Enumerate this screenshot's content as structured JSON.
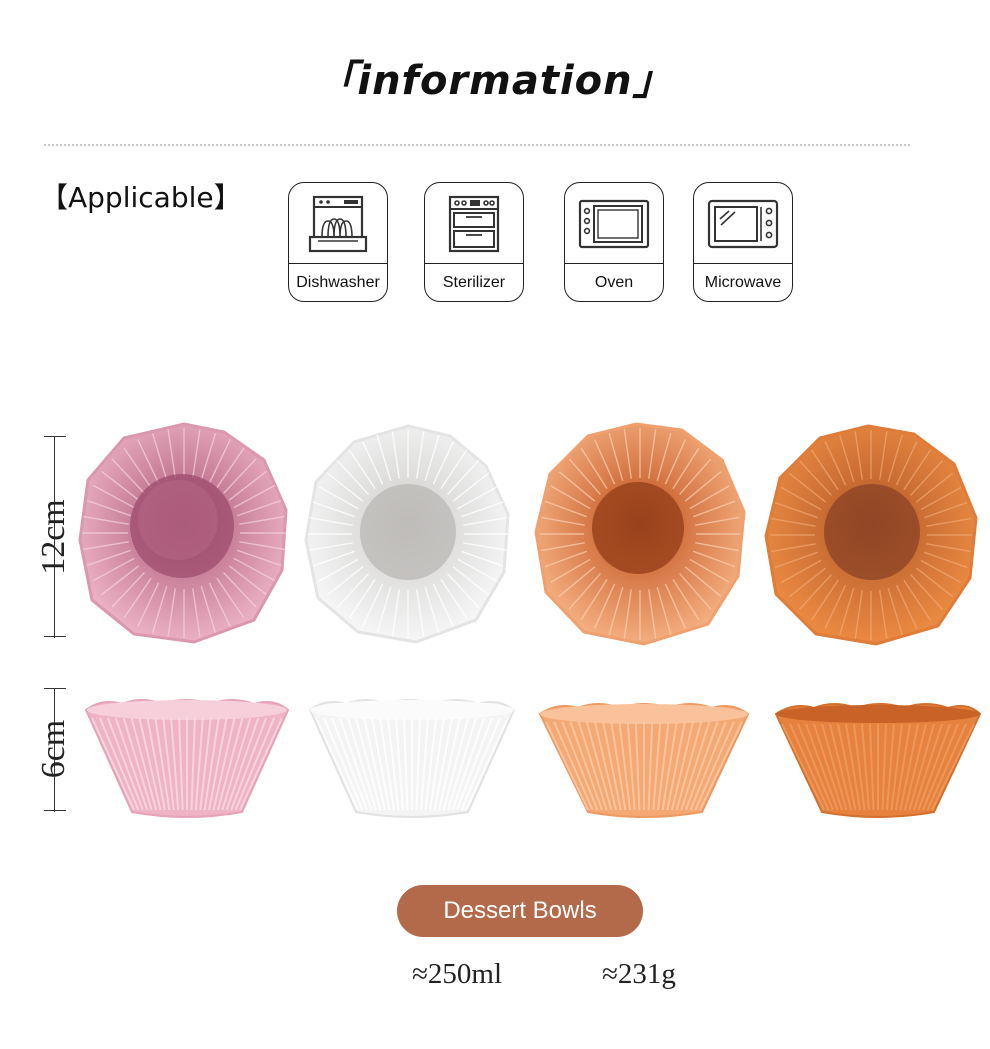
{
  "header": {
    "title": "「information」"
  },
  "applicable": {
    "label": "【Applicable】",
    "items": [
      {
        "label": "Dishwasher",
        "icon": "dishwasher-icon"
      },
      {
        "label": "Sterilizer",
        "icon": "sterilizer-icon"
      },
      {
        "label": "Oven",
        "icon": "oven-icon"
      },
      {
        "label": "Microwave",
        "icon": "microwave-icon"
      }
    ]
  },
  "dimensions": {
    "diameter": "12cm",
    "height": "6cm"
  },
  "bowls": {
    "colors": [
      "#e8a9bd",
      "#ededed",
      "#f2a775",
      "#e8803f"
    ]
  },
  "product": {
    "name": "Dessert Bowls",
    "volume": "≈250ml",
    "weight": "≈231g"
  }
}
